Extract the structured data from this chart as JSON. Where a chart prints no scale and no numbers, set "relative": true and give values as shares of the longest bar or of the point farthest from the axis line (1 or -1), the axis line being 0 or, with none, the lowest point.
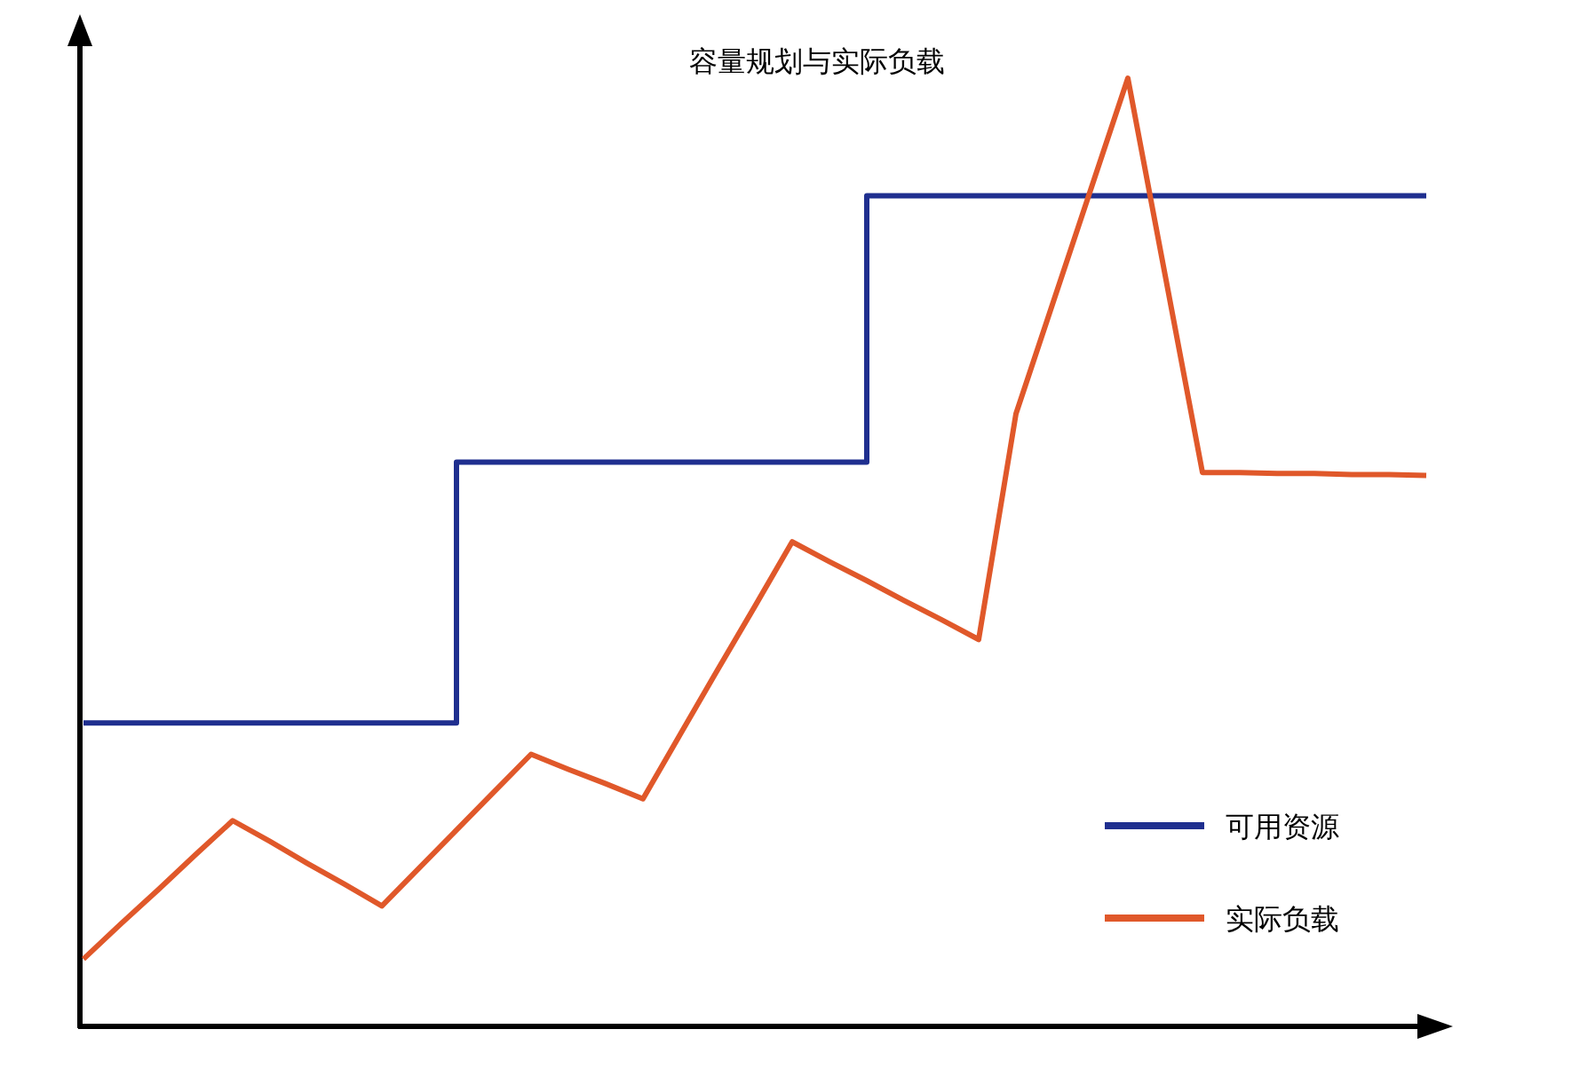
{
  "chart_data": {
    "type": "line",
    "title": "容量规划与实际负载",
    "relative": true,
    "legend": "bottom right",
    "marker": "none",
    "line_style": "solid",
    "categories": [
      null,
      null,
      null,
      null,
      null,
      null,
      null,
      null,
      null,
      null,
      null,
      null,
      null,
      null,
      null,
      null,
      null,
      null,
      null,
      null,
      null,
      null,
      null,
      null,
      null,
      null,
      null,
      null,
      null,
      null,
      null,
      null,
      null,
      null,
      null,
      null,
      null
    ],
    "series": [
      {
        "name": "可用资源",
        "type": "step",
        "color": "#1f2f8f",
        "values": [
          0.32,
          0.32,
          0.32,
          0.32,
          0.32,
          0.32,
          0.32,
          0.32,
          0.32,
          0.32,
          0.595,
          0.595,
          0.595,
          0.595,
          0.595,
          0.595,
          0.595,
          0.595,
          0.595,
          0.595,
          0.595,
          0.876,
          0.876,
          0.876,
          0.876,
          0.876,
          0.876,
          0.876,
          0.876,
          0.876,
          0.876,
          0.876,
          0.876,
          0.876,
          0.876,
          0.876,
          0.876
        ]
      },
      {
        "name": "实际负载",
        "color": "#e0582a",
        "values": [
          0.071,
          0.108,
          0.144,
          0.181,
          0.217,
          0.195,
          0.172,
          0.15,
          0.127,
          0.167,
          0.207,
          0.247,
          0.287,
          0.271,
          0.256,
          0.24,
          0.308,
          0.376,
          0.443,
          0.511,
          0.49,
          0.47,
          0.449,
          0.429,
          0.408,
          0.646,
          0.764,
          0.882,
          1,
          0.792,
          0.584,
          0.584,
          0.583,
          0.583,
          0.582,
          0.582,
          0.581
        ]
      }
    ]
  }
}
